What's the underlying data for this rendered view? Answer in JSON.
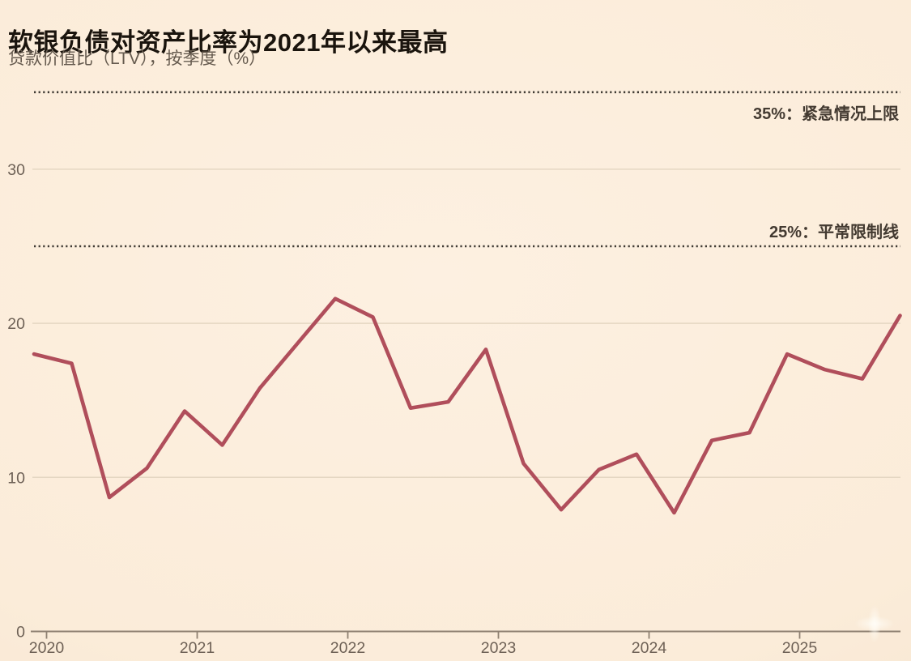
{
  "header": {
    "title": "软银负债对资产比率为2021年以来最高",
    "subtitle": "贷款价值比（LTV），按季度（%）"
  },
  "colors": {
    "background": "#fceedd",
    "title": "#1a140d",
    "subtitle": "#655a4e",
    "line": "#b04e5b",
    "grid": "#e5d7c3",
    "axis": "#8f8172",
    "axis_label": "#6e6156",
    "refline": "#3f3a33",
    "ref_label": "#433a31"
  },
  "chart_data": {
    "type": "line",
    "title": "软银负债对资产比率为2021年以来最高",
    "subtitle": "贷款价值比（LTV），按季度（%）",
    "unit": "%",
    "frequency": "quarterly",
    "x": [
      "2019 Q4",
      "2020 Q1",
      "2020 Q2",
      "2020 Q3",
      "2020 Q4",
      "2021 Q1",
      "2021 Q2",
      "2021 Q3",
      "2021 Q4",
      "2022 Q1",
      "2022 Q2",
      "2022 Q3",
      "2022 Q4",
      "2023 Q1",
      "2023 Q2",
      "2023 Q3",
      "2023 Q4",
      "2024 Q1",
      "2024 Q2",
      "2024 Q3",
      "2024 Q4",
      "2025 Q1",
      "2025 Q2",
      "2025 Q3"
    ],
    "values": [
      18.0,
      17.4,
      8.7,
      10.6,
      14.3,
      12.1,
      15.8,
      18.7,
      21.6,
      20.4,
      14.5,
      14.9,
      18.3,
      10.9,
      7.9,
      10.5,
      11.5,
      7.7,
      12.4,
      12.9,
      18.0,
      17.0,
      16.4,
      20.5
    ],
    "year_ticks": [
      "2020",
      "2021",
      "2022",
      "2023",
      "2024",
      "2025"
    ],
    "yticks": [
      0,
      10,
      20,
      30
    ],
    "ylim": [
      0,
      36.8
    ],
    "grid": "horizontal-only",
    "legend": "none",
    "reference_lines": [
      {
        "value": 35,
        "label": "35%：紧急情况上限",
        "label_side": "below"
      },
      {
        "value": 25,
        "label": "25%：平常限制线",
        "label_side": "above"
      }
    ]
  }
}
